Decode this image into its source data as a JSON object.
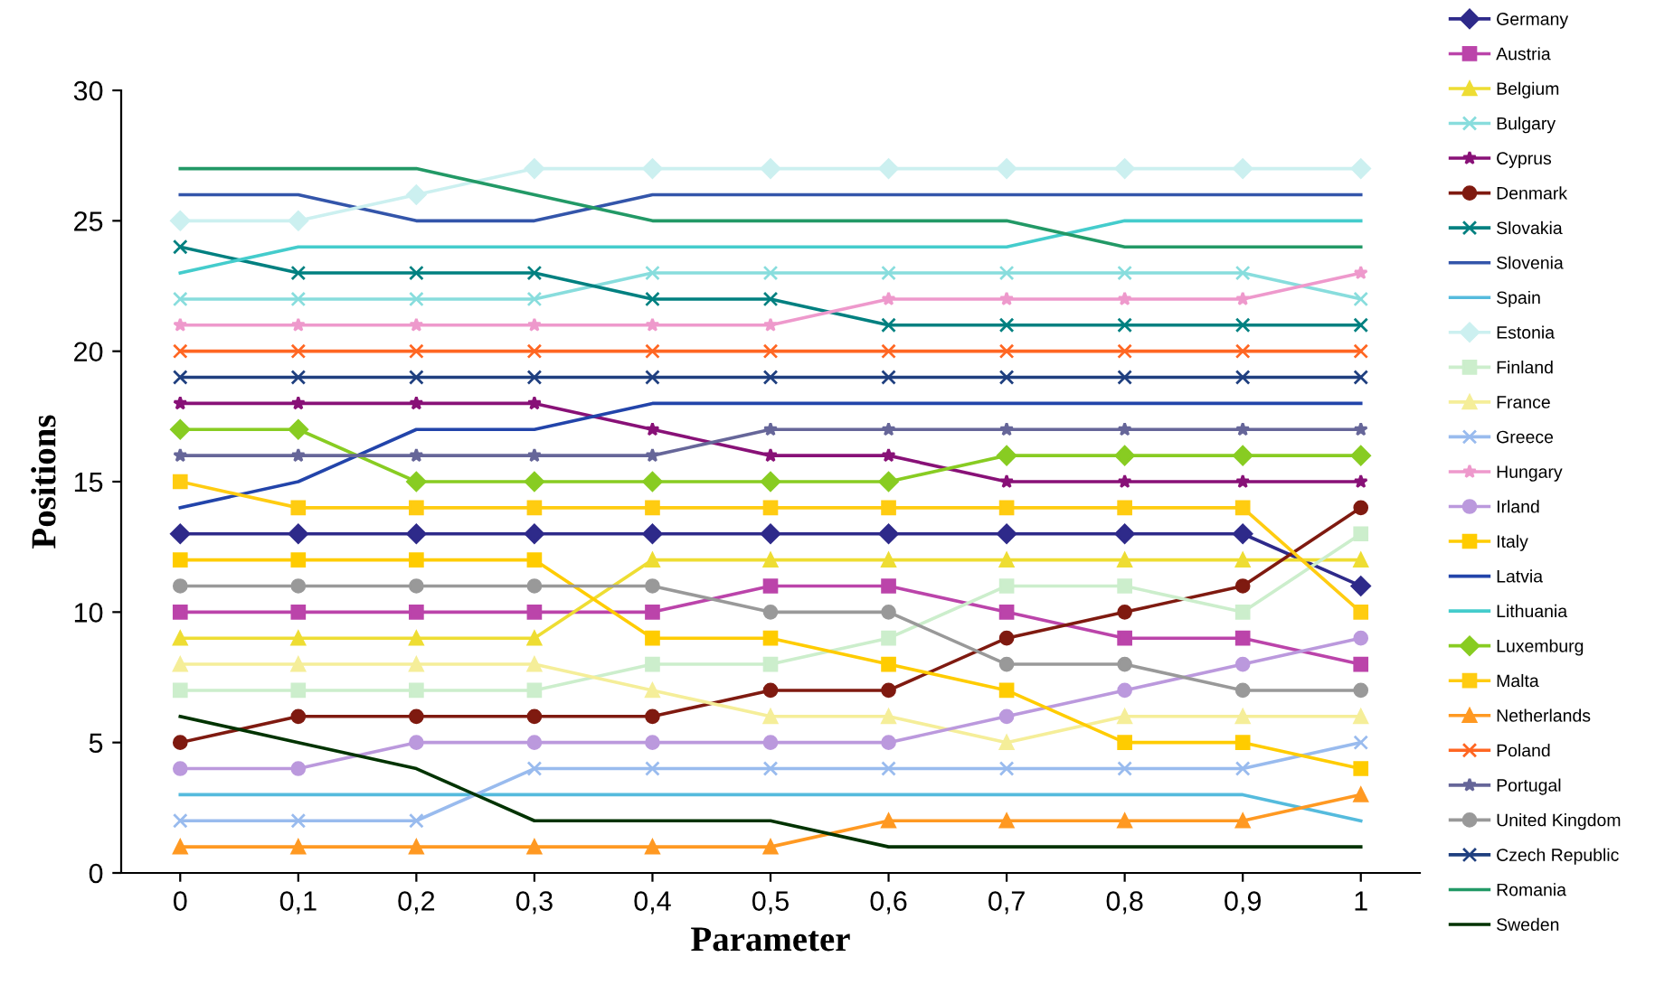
{
  "chart_data": {
    "type": "line",
    "xlabel": "Parameter",
    "ylabel": "Positions",
    "x": [
      0,
      0.1,
      0.2,
      0.3,
      0.4,
      0.5,
      0.6,
      0.7,
      0.8,
      0.9,
      1
    ],
    "xlim": [
      -0.05,
      1.05
    ],
    "xticks": [
      0,
      {
        "value": 0.1,
        "label": "0,1"
      },
      {
        "value": 0.2,
        "label": "0,2"
      },
      {
        "value": 0.3,
        "label": "0,3"
      },
      {
        "value": 0.4,
        "label": "0,4"
      },
      {
        "value": 0.5,
        "label": "0,5"
      },
      {
        "value": 0.6,
        "label": "0,6"
      },
      {
        "value": 0.7,
        "label": "0,7"
      },
      {
        "value": 0.8,
        "label": "0,8"
      },
      {
        "value": 0.9,
        "label": "0,9"
      },
      1
    ],
    "ylim": [
      0,
      30
    ],
    "yticks": [
      0,
      5,
      10,
      15,
      20,
      25,
      30
    ],
    "grid": false,
    "legend": "right",
    "series": [
      {
        "name": "Germany",
        "color": "#2e2a8a",
        "marker": "diamond",
        "values": [
          13,
          13,
          13,
          13,
          13,
          13,
          13,
          13,
          13,
          13,
          11
        ]
      },
      {
        "name": "Austria",
        "color": "#bb44aa",
        "marker": "square",
        "values": [
          10,
          10,
          10,
          10,
          10,
          11,
          11,
          10,
          9,
          9,
          8
        ]
      },
      {
        "name": "Belgium",
        "color": "#eedd33",
        "marker": "triangle",
        "values": [
          9,
          9,
          9,
          9,
          12,
          12,
          12,
          12,
          12,
          12,
          12
        ]
      },
      {
        "name": "Bulgary",
        "color": "#88dddd",
        "marker": "cross",
        "values": [
          22,
          22,
          22,
          22,
          23,
          23,
          23,
          23,
          23,
          23,
          22
        ]
      },
      {
        "name": "Cyprus",
        "color": "#881177",
        "marker": "star",
        "values": [
          18,
          18,
          18,
          18,
          17,
          16,
          16,
          15,
          15,
          15,
          15
        ]
      },
      {
        "name": "Denmark",
        "color": "#7f1a10",
        "marker": "circle",
        "values": [
          5,
          6,
          6,
          6,
          6,
          7,
          7,
          9,
          10,
          11,
          14
        ]
      },
      {
        "name": "Slovakia",
        "color": "#008080",
        "marker": "cross",
        "values": [
          24,
          23,
          23,
          23,
          22,
          22,
          21,
          21,
          21,
          21,
          21
        ]
      },
      {
        "name": "Slovenia",
        "color": "#3355aa",
        "marker": "none",
        "values": [
          26,
          26,
          25,
          25,
          26,
          26,
          26,
          26,
          26,
          26,
          26
        ]
      },
      {
        "name": "Spain",
        "color": "#55bbdd",
        "marker": "none",
        "values": [
          3,
          3,
          3,
          3,
          3,
          3,
          3,
          3,
          3,
          3,
          2
        ]
      },
      {
        "name": "Estonia",
        "color": "#ccf0f0",
        "marker": "diamond",
        "values": [
          25,
          25,
          26,
          27,
          27,
          27,
          27,
          27,
          27,
          27,
          27
        ]
      },
      {
        "name": "Finland",
        "color": "#cceecc",
        "marker": "square",
        "values": [
          7,
          7,
          7,
          7,
          8,
          8,
          9,
          11,
          11,
          10,
          13
        ]
      },
      {
        "name": "France",
        "color": "#f5ee99",
        "marker": "triangle",
        "values": [
          8,
          8,
          8,
          8,
          7,
          6,
          6,
          5,
          6,
          6,
          6
        ]
      },
      {
        "name": "Greece",
        "color": "#99bbee",
        "marker": "cross",
        "values": [
          2,
          2,
          2,
          4,
          4,
          4,
          4,
          4,
          4,
          4,
          5
        ]
      },
      {
        "name": "Hungary",
        "color": "#ee99cc",
        "marker": "star",
        "values": [
          21,
          21,
          21,
          21,
          21,
          21,
          22,
          22,
          22,
          22,
          23
        ]
      },
      {
        "name": "Irland",
        "color": "#bb99dd",
        "marker": "circle",
        "values": [
          4,
          4,
          5,
          5,
          5,
          5,
          5,
          6,
          7,
          8,
          9
        ]
      },
      {
        "name": "Italy",
        "color": "#ffcc00",
        "marker": "square",
        "values": [
          12,
          12,
          12,
          12,
          9,
          9,
          8,
          7,
          5,
          5,
          4
        ]
      },
      {
        "name": "Latvia",
        "color": "#2244aa",
        "marker": "none",
        "values": [
          14,
          15,
          17,
          17,
          18,
          18,
          18,
          18,
          18,
          18,
          18
        ]
      },
      {
        "name": "Lithuania",
        "color": "#44cccc",
        "marker": "none",
        "values": [
          23,
          24,
          24,
          24,
          24,
          24,
          24,
          24,
          25,
          25,
          25
        ]
      },
      {
        "name": "Luxemburg",
        "color": "#88cc22",
        "marker": "diamond",
        "values": [
          17,
          17,
          15,
          15,
          15,
          15,
          15,
          16,
          16,
          16,
          16
        ]
      },
      {
        "name": "Malta",
        "color": "#ffcc11",
        "marker": "square",
        "values": [
          15,
          14,
          14,
          14,
          14,
          14,
          14,
          14,
          14,
          14,
          10
        ]
      },
      {
        "name": "Netherlands",
        "color": "#ff9922",
        "marker": "triangle",
        "values": [
          1,
          1,
          1,
          1,
          1,
          1,
          2,
          2,
          2,
          2,
          3
        ]
      },
      {
        "name": "Poland",
        "color": "#ff6622",
        "marker": "cross",
        "values": [
          20,
          20,
          20,
          20,
          20,
          20,
          20,
          20,
          20,
          20,
          20
        ]
      },
      {
        "name": "Portugal",
        "color": "#666699",
        "marker": "star",
        "values": [
          16,
          16,
          16,
          16,
          16,
          17,
          17,
          17,
          17,
          17,
          17
        ]
      },
      {
        "name": "United Kingdom",
        "color": "#999999",
        "marker": "circle",
        "values": [
          11,
          11,
          11,
          11,
          11,
          10,
          10,
          8,
          8,
          7,
          7
        ]
      },
      {
        "name": "Czech Republic",
        "color": "#1f3f7f",
        "marker": "cross",
        "values": [
          19,
          19,
          19,
          19,
          19,
          19,
          19,
          19,
          19,
          19,
          19
        ]
      },
      {
        "name": "Romania",
        "color": "#229966",
        "marker": "none",
        "values": [
          27,
          27,
          27,
          26,
          25,
          25,
          25,
          25,
          24,
          24,
          24
        ]
      },
      {
        "name": "Sweden",
        "color": "#003300",
        "marker": "none",
        "values": [
          6,
          5,
          4,
          2,
          2,
          2,
          1,
          1,
          1,
          1,
          1
        ]
      }
    ]
  }
}
